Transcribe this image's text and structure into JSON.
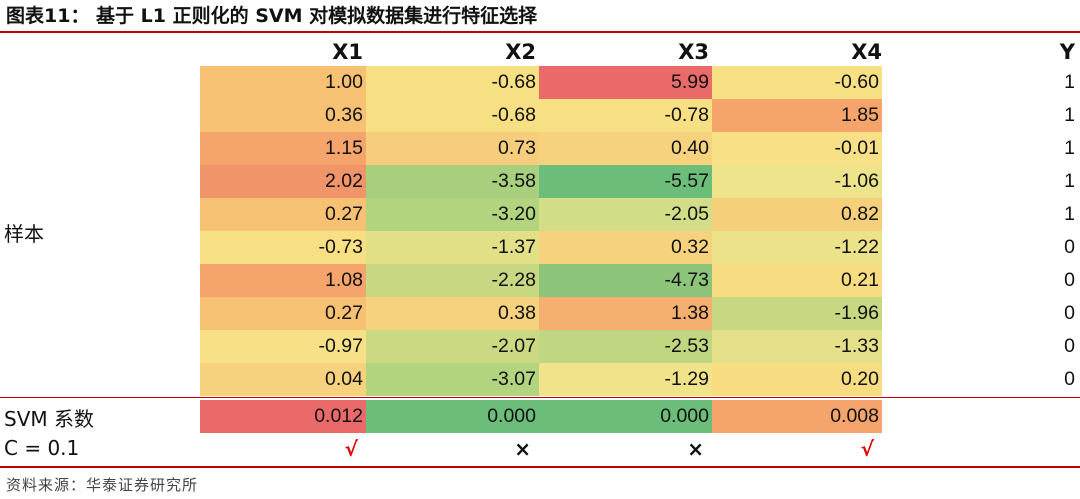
{
  "title": "图表11：  基于 L1 正则化的 SVM 对模拟数据集进行特征选择",
  "columns": [
    "X1",
    "X2",
    "X3",
    "X4"
  ],
  "y_header": "Y",
  "sample_label": "样本",
  "rows": [
    {
      "values": [
        "1.00",
        "-0.68",
        "5.99",
        "-0.60"
      ],
      "y": "1"
    },
    {
      "values": [
        "0.36",
        "-0.68",
        "-0.78",
        "1.85"
      ],
      "y": "1"
    },
    {
      "values": [
        "1.15",
        "0.73",
        "0.40",
        "-0.01"
      ],
      "y": "1"
    },
    {
      "values": [
        "2.02",
        "-3.58",
        "-5.57",
        "-1.06"
      ],
      "y": "1"
    },
    {
      "values": [
        "0.27",
        "-3.20",
        "-2.05",
        "0.82"
      ],
      "y": "1"
    },
    {
      "values": [
        "-0.73",
        "-1.37",
        "0.32",
        "-1.22"
      ],
      "y": "0"
    },
    {
      "values": [
        "1.08",
        "-2.28",
        "-4.73",
        "0.21"
      ],
      "y": "0"
    },
    {
      "values": [
        "0.27",
        "0.38",
        "1.38",
        "-1.96"
      ],
      "y": "0"
    },
    {
      "values": [
        "-0.97",
        "-2.07",
        "-2.53",
        "-1.33"
      ],
      "y": "0"
    },
    {
      "values": [
        "0.04",
        "-3.07",
        "-1.29",
        "0.20"
      ],
      "y": "0"
    }
  ],
  "svm_label": "SVM 系数",
  "svm_coefficients": [
    "0.012",
    "0.000",
    "0.000",
    "0.008"
  ],
  "c_label": "C = 0.1",
  "selection_marks": [
    "√",
    "×",
    "×",
    "√"
  ],
  "mark_colors": {
    "selected": "#e00000",
    "rejected": "#111111"
  },
  "row_colors": [
    [
      "#f6c173",
      "#f7df84",
      "#ea6a6a",
      "#f7df84"
    ],
    [
      "#f6c173",
      "#f7df84",
      "#f7df84",
      "#f5a56b"
    ],
    [
      "#f5a56b",
      "#f6cd7c",
      "#f6d27e",
      "#f7e086"
    ],
    [
      "#f0946a",
      "#a8cf7e",
      "#6cbd79",
      "#ece38b"
    ],
    [
      "#f6c173",
      "#b3d47f",
      "#d3dc86",
      "#f6cf7a"
    ],
    [
      "#f7df84",
      "#e2e087",
      "#f6d27e",
      "#ebe28a"
    ],
    [
      "#f5a56b",
      "#c8d882",
      "#8cc47a",
      "#f7dc82"
    ],
    [
      "#f6c173",
      "#f6d27e",
      "#f5b06f",
      "#c8d882"
    ],
    [
      "#f7e086",
      "#cbd983",
      "#c0d680",
      "#e4e089"
    ],
    [
      "#f6d27e",
      "#b3d47f",
      "#f0e38a",
      "#f7dc82"
    ]
  ],
  "svm_colors": [
    "#ea6a6a",
    "#6cbd79",
    "#6cbd79",
    "#f5a56b"
  ],
  "source": "资料来源：华泰证券研究所"
}
